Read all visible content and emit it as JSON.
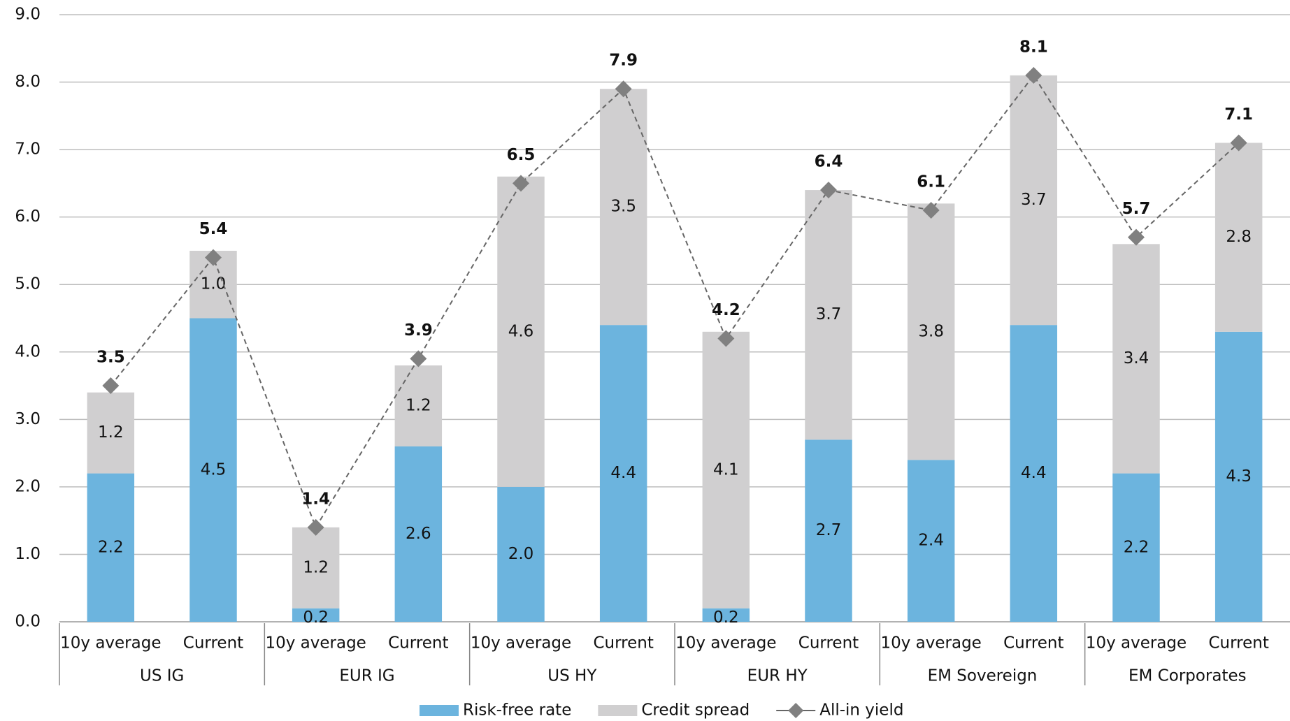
{
  "chart_data": {
    "type": "bar",
    "stacked": true,
    "grid": true,
    "categories": [
      "10y average",
      "Current",
      "10y average",
      "Current",
      "10y average",
      "Current",
      "10y average",
      "Current",
      "10y average",
      "Current",
      "10y average",
      "Current"
    ],
    "groups": [
      "US IG",
      "EUR IG",
      "US HY",
      "EUR HY",
      "EM Sovereign",
      "EM Corporates"
    ],
    "series": [
      {
        "name": "Risk-free rate",
        "color": "#6cb4de",
        "values": [
          2.2,
          4.5,
          0.2,
          2.6,
          2.0,
          4.4,
          0.2,
          2.7,
          2.4,
          4.4,
          2.2,
          4.3
        ],
        "value_labels": [
          "2.2",
          "4.5",
          "0.2",
          "2.6",
          "2.0",
          "4.4",
          "0.2",
          "2.7",
          "2.4",
          "4.4",
          "2.2",
          "4.3"
        ]
      },
      {
        "name": "Credit spread",
        "color": "#d0cfd0",
        "values": [
          1.2,
          1.0,
          1.2,
          1.2,
          4.6,
          3.5,
          4.1,
          3.7,
          3.8,
          3.7,
          3.4,
          2.8
        ],
        "value_labels": [
          "1.2",
          "1.0",
          "1.2",
          "1.2",
          "4.6",
          "3.5",
          "4.1",
          "3.7",
          "3.8",
          "3.7",
          "3.4",
          "2.8"
        ]
      },
      {
        "name": "All-in yield",
        "type": "line",
        "color": "#808080",
        "values": [
          3.5,
          5.4,
          1.4,
          3.9,
          6.5,
          7.9,
          4.2,
          6.4,
          6.1,
          8.1,
          5.7,
          7.1
        ]
      }
    ],
    "ylim": [
      0,
      9
    ],
    "yticks": [
      {
        "value": 0,
        "label": "0.0"
      },
      {
        "value": 1,
        "label": "1.0"
      },
      {
        "value": 2,
        "label": "2.0"
      },
      {
        "value": 3,
        "label": "3.0"
      },
      {
        "value": 4,
        "label": "4.0"
      },
      {
        "value": 5,
        "label": "5.0"
      },
      {
        "value": 6,
        "label": "6.0"
      },
      {
        "value": 7,
        "label": "7.0"
      },
      {
        "value": 8,
        "label": "8.0"
      },
      {
        "value": 9,
        "label": "9.0"
      }
    ]
  }
}
